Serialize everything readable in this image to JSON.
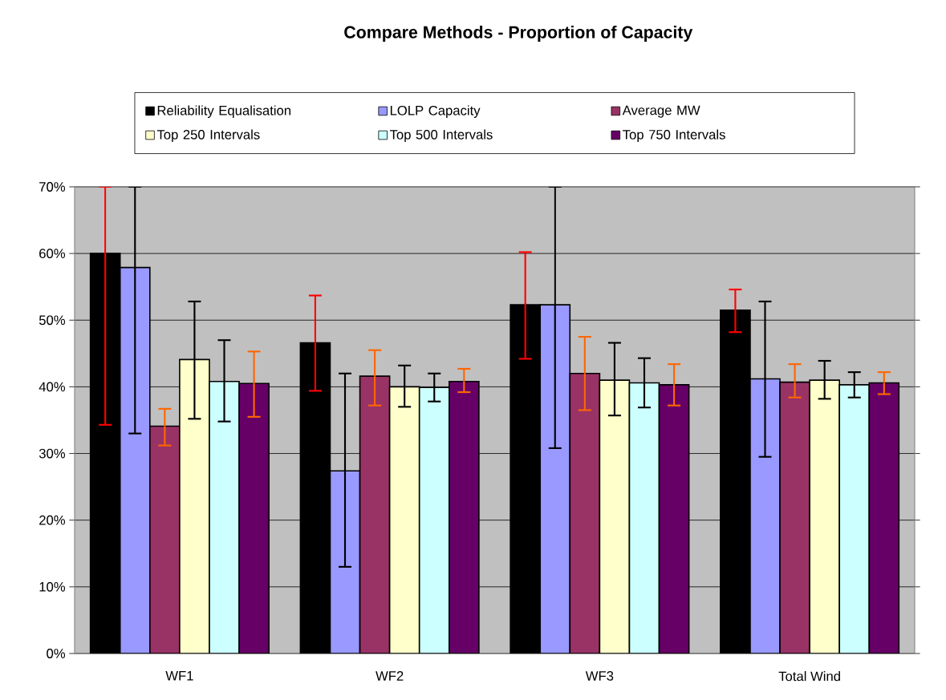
{
  "chart_data": {
    "type": "bar",
    "title": "Compare Methods - Proportion of Capacity",
    "categories": [
      "WF1",
      "WF2",
      "WF3",
      "Total Wind"
    ],
    "series": [
      {
        "name": "Reliability Equalisation",
        "color": "#000000",
        "values": [
          60,
          46.6,
          52.3,
          51.5
        ],
        "errors": [
          [
            34.3,
            70
          ],
          [
            39.4,
            53.7
          ],
          [
            44.2,
            60.2
          ],
          [
            48.2,
            54.6
          ]
        ]
      },
      {
        "name": "LOLP Capacity",
        "color": "#9999ff",
        "values": [
          57.9,
          27.4,
          52.3,
          41.2
        ],
        "errors": [
          [
            33,
            70
          ],
          [
            13,
            42
          ],
          [
            30.8,
            70
          ],
          [
            29.5,
            52.8
          ]
        ]
      },
      {
        "name": "Average MW",
        "color": "#993366",
        "values": [
          34.1,
          41.6,
          42,
          40.7
        ],
        "errors": [
          [
            31.2,
            36.7
          ],
          [
            37.2,
            45.5
          ],
          [
            36.5,
            47.5
          ],
          [
            38.4,
            43.4
          ]
        ]
      },
      {
        "name": "Top 250 Intervals",
        "color": "#ffffcc",
        "values": [
          44.1,
          40,
          41,
          41
        ],
        "errors": [
          [
            35.2,
            52.8
          ],
          [
            37,
            43.2
          ],
          [
            35.7,
            46.6
          ],
          [
            38.2,
            43.9
          ]
        ]
      },
      {
        "name": "Top 500 Intervals",
        "color": "#ccffff",
        "values": [
          40.8,
          39.9,
          40.6,
          40.3
        ],
        "errors": [
          [
            34.8,
            47
          ],
          [
            37.8,
            42
          ],
          [
            36.9,
            44.3
          ],
          [
            38.4,
            42.2
          ]
        ]
      },
      {
        "name": "Top 750 Intervals",
        "color": "#660066",
        "values": [
          40.5,
          40.8,
          40.3,
          40.6
        ],
        "errors": [
          [
            35.5,
            45.3
          ],
          [
            39.2,
            42.7
          ],
          [
            37.2,
            43.4
          ],
          [
            38.9,
            42.2
          ]
        ]
      }
    ],
    "ylim": [
      0,
      70
    ],
    "yticks": [
      {
        "value": 0,
        "label": "0%"
      },
      {
        "value": 10,
        "label": "10%"
      },
      {
        "value": 20,
        "label": "20%"
      },
      {
        "value": 30,
        "label": "30%"
      },
      {
        "value": 40,
        "label": "40%"
      },
      {
        "value": 50,
        "label": "50%"
      },
      {
        "value": 60,
        "label": "60%"
      },
      {
        "value": 70,
        "label": "70%"
      }
    ],
    "grid": "y",
    "legend": "top"
  }
}
